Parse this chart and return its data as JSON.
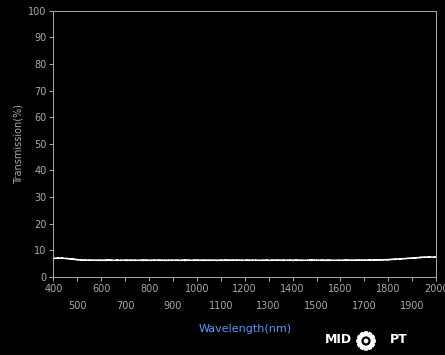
{
  "background_color": "#000000",
  "plot_bg_color": "#000000",
  "line_color": "#ffffff",
  "line_width": 1.0,
  "xlabel": "Wavelength(nm)",
  "ylabel": "Transmission(%)",
  "xlabel_color": "#5599ff",
  "ylabel_color": "#aaaaaa",
  "tick_color": "#aaaaaa",
  "tick_label_color": "#aaaaaa",
  "xlim": [
    400,
    2000
  ],
  "ylim": [
    0,
    100
  ],
  "xticks_major": [
    400,
    600,
    800,
    1000,
    1200,
    1400,
    1600,
    1800,
    2000
  ],
  "xticks_minor": [
    500,
    700,
    900,
    1100,
    1300,
    1500,
    1700,
    1900
  ],
  "yticks": [
    0,
    10,
    20,
    30,
    40,
    50,
    60,
    70,
    80,
    90,
    100
  ],
  "transmission_base": 6.25,
  "x_start": 400,
  "x_end": 2000
}
